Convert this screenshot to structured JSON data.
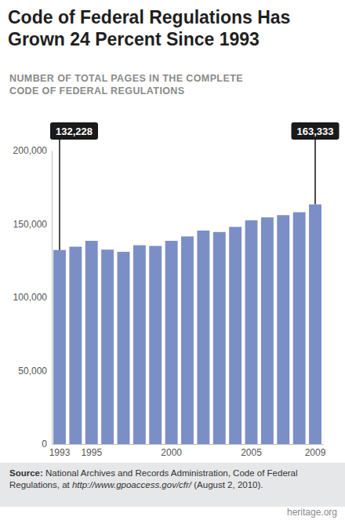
{
  "chart_data": {
    "type": "bar",
    "title": "Code of Federal Regulations Has Grown 24 Percent Since 1993",
    "subtitle": "NUMBER OF TOTAL PAGES IN THE COMPLETE CODE OF FEDERAL REGULATIONS",
    "categories": [
      "1993",
      null,
      "1995",
      null,
      null,
      null,
      null,
      "2000",
      null,
      null,
      null,
      null,
      "2005",
      null,
      null,
      null,
      "2009"
    ],
    "values": [
      132228,
      134500,
      138500,
      132500,
      131000,
      135500,
      135000,
      138500,
      141500,
      145500,
      144500,
      148000,
      152500,
      154500,
      156000,
      158000,
      163333
    ],
    "value_labels": [
      "132,228",
      null,
      null,
      null,
      null,
      null,
      null,
      null,
      null,
      null,
      null,
      null,
      null,
      null,
      null,
      null,
      "163,333"
    ],
    "data_labels": true,
    "color": "#7b8ec6",
    "ylim": [
      0,
      200000
    ],
    "yticks": [
      0,
      {
        "value": 50000,
        "label": "50,000"
      },
      {
        "value": 100000,
        "label": "100,000"
      },
      {
        "value": 150000,
        "label": "150,000"
      },
      {
        "value": 200000,
        "label": "200,000"
      }
    ],
    "grid": false,
    "source": [
      "Source:",
      "National Archives and Records Administration,",
      "Code of Federal Regulations,",
      "at",
      "http://www.gpoaccess.gov/cfr/",
      "(August 2, 2010)."
    ],
    "credit": "heritage.org"
  }
}
